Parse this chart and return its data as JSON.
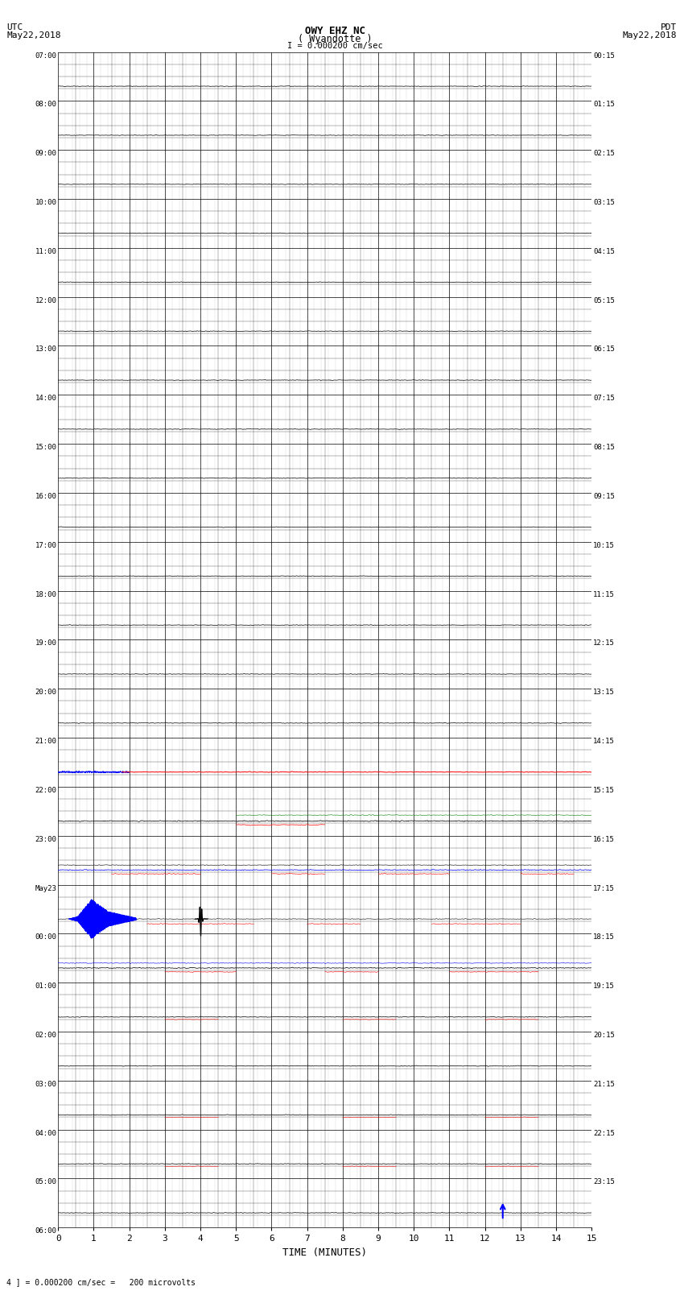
{
  "title_line1": "OWY EHZ NC",
  "title_line2": "( Wyandotte )",
  "scale_text": "I = 0.000200 cm/sec",
  "left_label_line1": "UTC",
  "left_label_line2": "May22,2018",
  "right_label_line1": "PDT",
  "right_label_line2": "May22,2018",
  "bottom_label": "TIME (MINUTES)",
  "bottom_note": "4 ] = 0.000200 cm/sec =   200 microvolts",
  "utc_labels": [
    "07:00",
    "08:00",
    "09:00",
    "10:00",
    "11:00",
    "12:00",
    "13:00",
    "14:00",
    "15:00",
    "16:00",
    "17:00",
    "18:00",
    "19:00",
    "20:00",
    "21:00",
    "22:00",
    "23:00",
    "May23",
    "00:00",
    "01:00",
    "02:00",
    "03:00",
    "04:00",
    "05:00",
    "06:00"
  ],
  "pdt_labels": [
    "00:15",
    "01:15",
    "02:15",
    "03:15",
    "04:15",
    "05:15",
    "06:15",
    "07:15",
    "08:15",
    "09:15",
    "10:15",
    "11:15",
    "12:15",
    "13:15",
    "14:15",
    "15:15",
    "16:15",
    "17:15",
    "18:15",
    "19:15",
    "20:15",
    "21:15",
    "22:15",
    "23:15"
  ],
  "num_rows": 24,
  "x_min": 0,
  "x_max": 15,
  "x_ticks": [
    0,
    1,
    2,
    3,
    4,
    5,
    6,
    7,
    8,
    9,
    10,
    11,
    12,
    13,
    14,
    15
  ],
  "bg_color": "#ffffff",
  "grid_color": "#000000",
  "figure_width": 8.5,
  "figure_height": 16.13,
  "row_21utc": 14,
  "row_22utc": 15,
  "row_23utc": 16,
  "row_00may23": 17,
  "row_01may23": 18
}
